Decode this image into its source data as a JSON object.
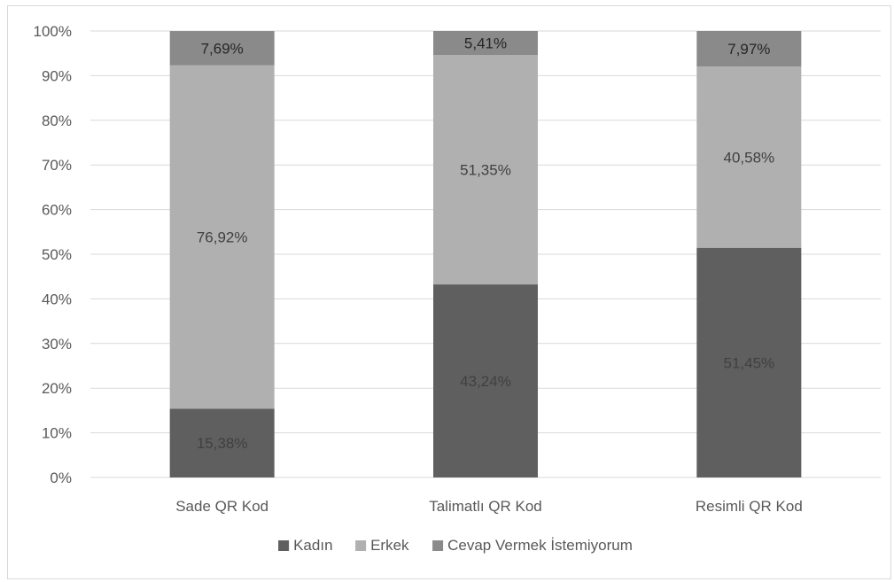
{
  "chart_data": {
    "type": "bar",
    "stacked": true,
    "percent_stacked": true,
    "categories": [
      "Sade QR Kod",
      "Talimatlı QR Kod",
      "Resimli QR Kod"
    ],
    "series": [
      {
        "name": "Kadın",
        "values": [
          15.38,
          43.24,
          51.45
        ],
        "labels": [
          "15,38%",
          "43,24%",
          "51,45%"
        ],
        "color": "#5f5f5f",
        "label_color": "#404040"
      },
      {
        "name": "Erkek",
        "values": [
          76.92,
          51.35,
          40.58
        ],
        "labels": [
          "76,92%",
          "51,35%",
          "40,58%"
        ],
        "color": "#b0b0b0",
        "label_color": "#404040"
      },
      {
        "name": "Cevap Vermek İstemiyorum",
        "values": [
          7.69,
          5.41,
          7.97
        ],
        "labels": [
          "7,69%",
          "5,41%",
          "7,97%"
        ],
        "color": "#8a8a8a",
        "label_color": "#262626"
      }
    ],
    "y_ticks": [
      "0%",
      "10%",
      "20%",
      "30%",
      "40%",
      "50%",
      "60%",
      "70%",
      "80%",
      "90%",
      "100%"
    ],
    "ylim": [
      0,
      100
    ],
    "grid": true,
    "legend_position": "bottom",
    "title": "",
    "xlabel": "",
    "ylabel": ""
  }
}
